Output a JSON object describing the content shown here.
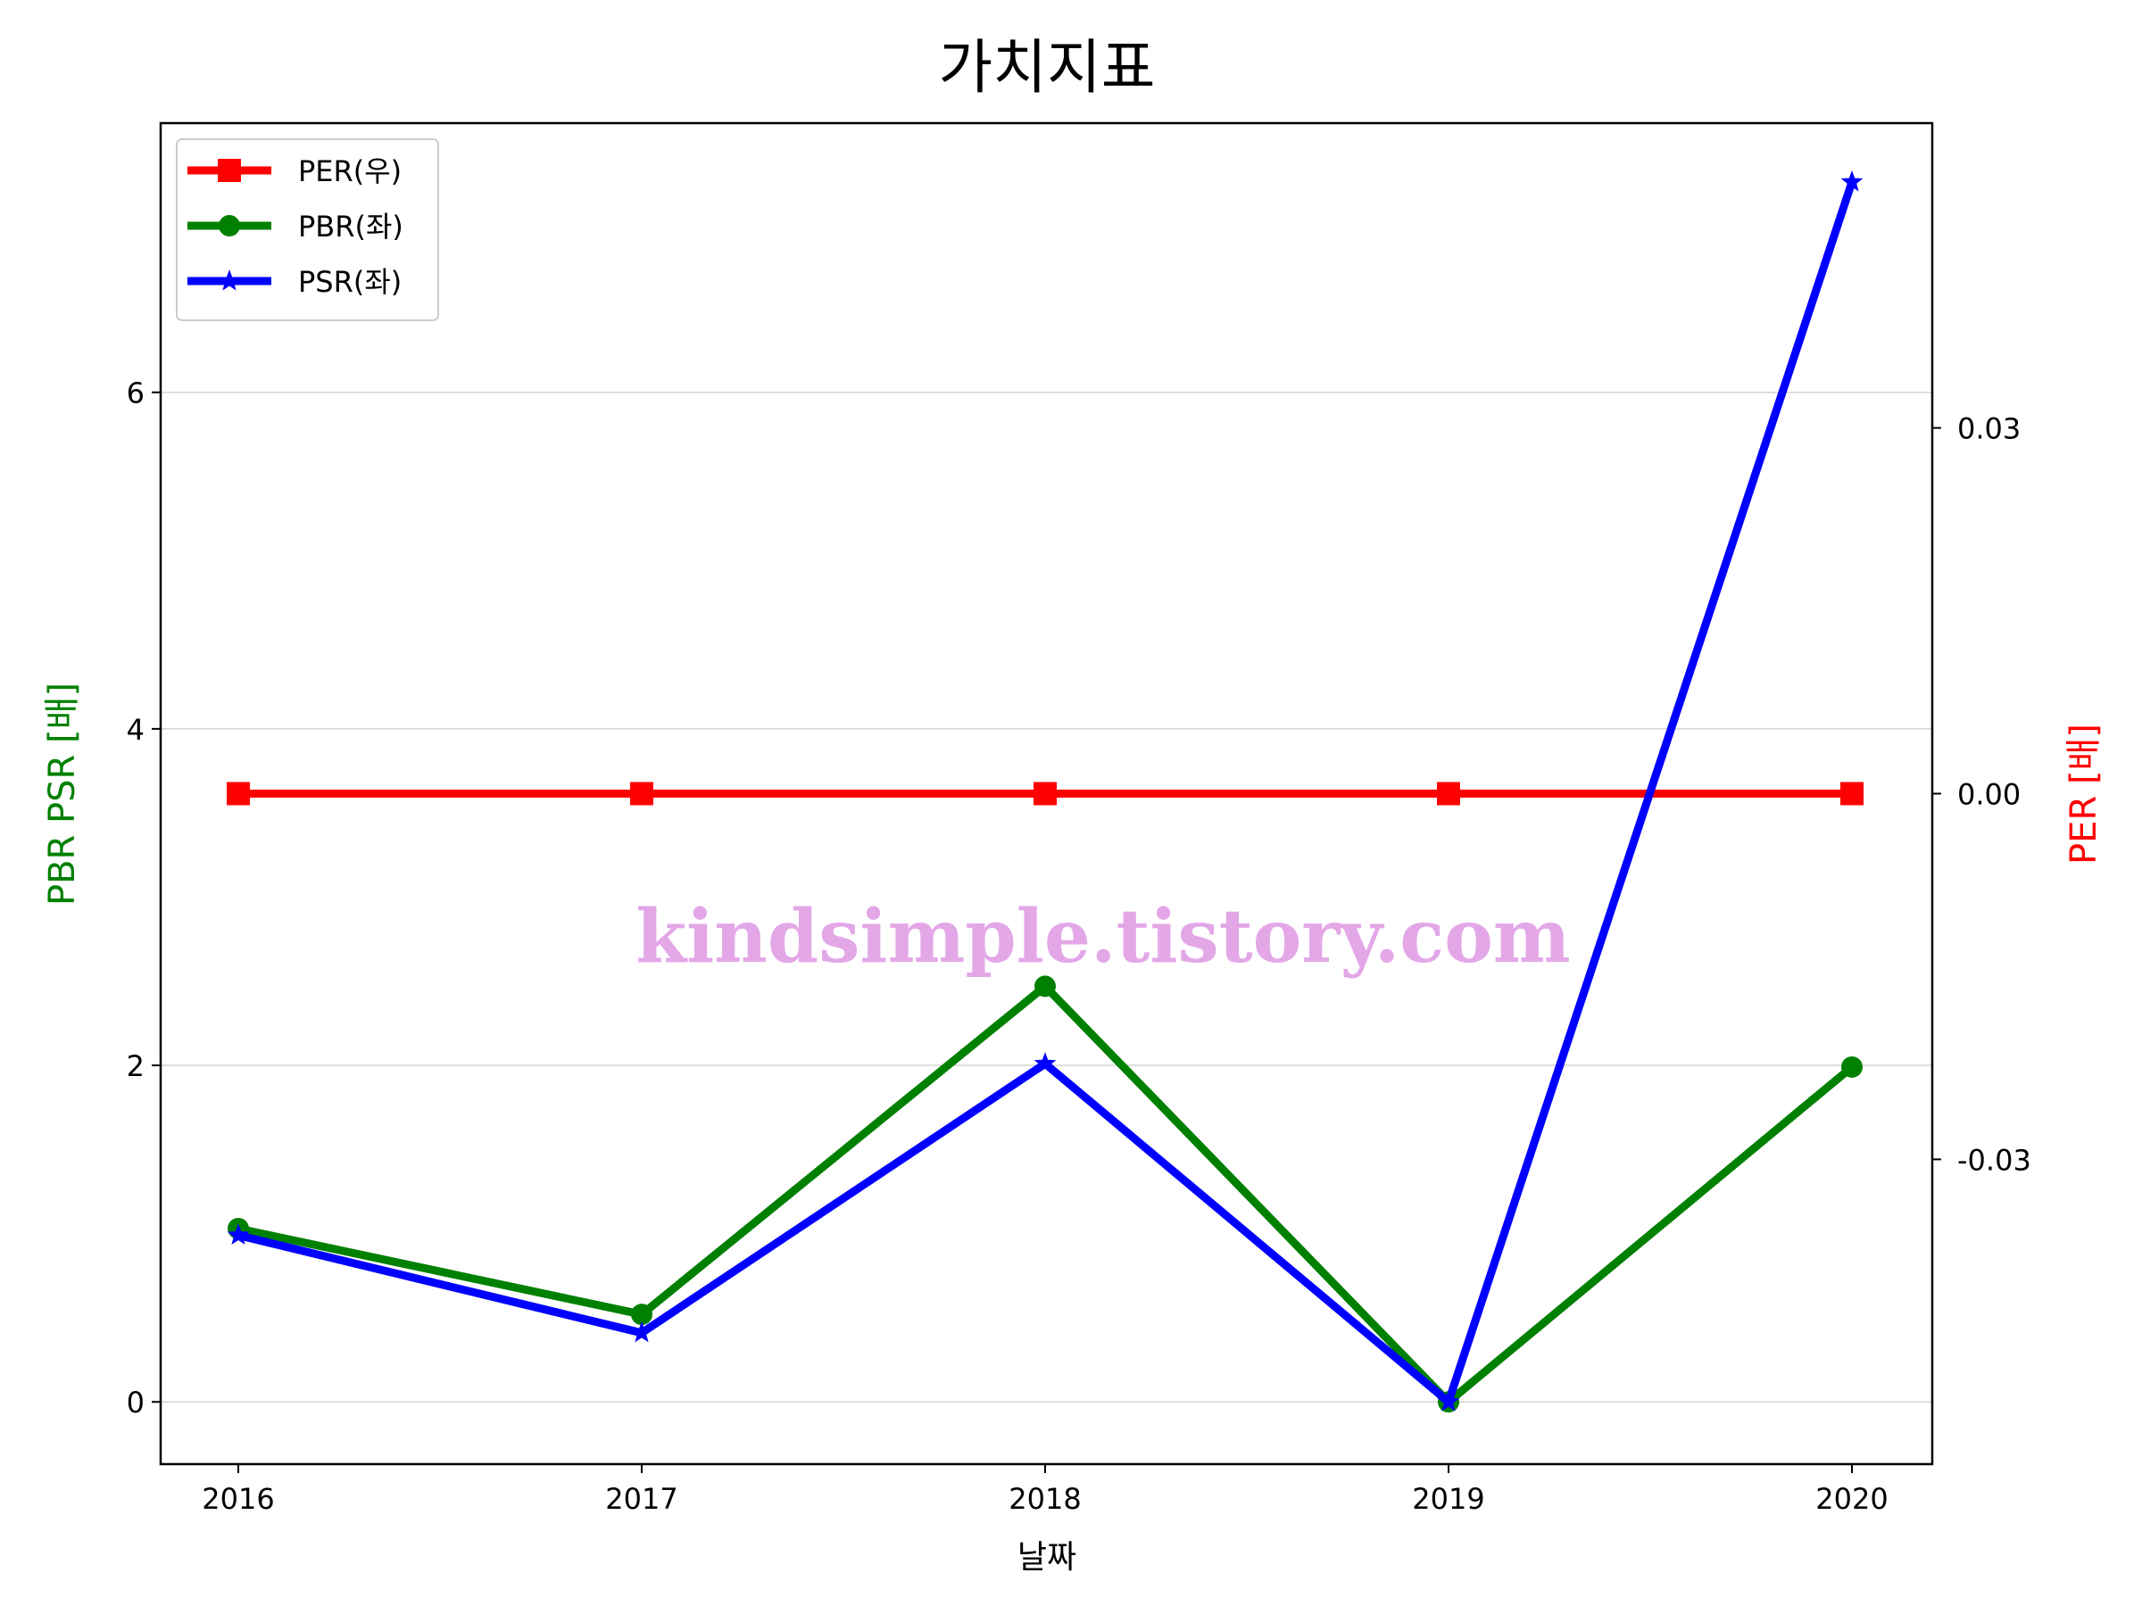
{
  "chart_data": {
    "type": "line",
    "title": "가치지표",
    "xlabel": "날짜",
    "ylabel_left": "PBR PSR [배]",
    "ylabel_right": "PER [배]",
    "categories": [
      "2016",
      "2017",
      "2018",
      "2019",
      "2020"
    ],
    "left_axis": {
      "ylim": [
        -0.37,
        7.6
      ],
      "ticks": [
        0,
        2,
        4,
        6
      ],
      "tick_labels": [
        "0",
        "2",
        "4",
        "6"
      ]
    },
    "right_axis": {
      "ylim": [
        -0.055,
        0.055
      ],
      "ticks": [
        -0.03,
        0.0,
        0.03
      ],
      "tick_labels": [
        "-0.03",
        "0.00",
        "0.03"
      ]
    },
    "series": [
      {
        "name": "PER(우)",
        "axis": "right",
        "values": [
          0,
          0,
          0,
          0,
          0
        ],
        "color": "#ff0000",
        "marker": "square"
      },
      {
        "name": "PBR(좌)",
        "axis": "left",
        "values": [
          1.03,
          0.52,
          2.47,
          0.0,
          1.99
        ],
        "color": "#008000",
        "marker": "circle"
      },
      {
        "name": "PSR(좌)",
        "axis": "left",
        "values": [
          0.99,
          0.41,
          2.01,
          0.0,
          7.25
        ],
        "color": "#0000ff",
        "marker": "star"
      }
    ],
    "grid": "horizontal",
    "legend_position": "top-left",
    "watermark": "kindsimple.tistory.com",
    "watermark_color": "#e3a7e8"
  }
}
